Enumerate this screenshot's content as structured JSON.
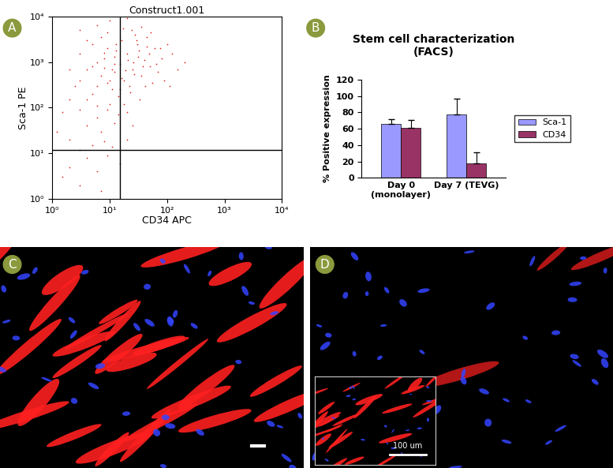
{
  "chart_data": [
    {
      "panel": "A",
      "type": "scatter",
      "title": "Construct1.001",
      "x_label": "CD34 APC",
      "y_label": "Sca-1 PE",
      "log": true,
      "color": "#e02020",
      "marker": "point",
      "xlim": [
        1,
        10000
      ],
      "ylim": [
        1,
        10000
      ],
      "xticks": [
        {
          "value": 1,
          "label": "10⁰"
        },
        {
          "value": 10,
          "label": "10¹"
        },
        {
          "value": 100,
          "label": "10²"
        },
        {
          "value": 1000,
          "label": "10³"
        },
        {
          "value": 10000,
          "label": "10⁴"
        }
      ],
      "yticks": [
        {
          "value": 1,
          "label": "10⁰"
        },
        {
          "value": 10,
          "label": "10¹"
        },
        {
          "value": 100,
          "label": "10²"
        },
        {
          "value": 1000,
          "label": "10³"
        },
        {
          "value": 10000,
          "label": "10⁴"
        }
      ],
      "gates": {
        "x": 15,
        "y": 12
      },
      "x": [
        5,
        8,
        12,
        6,
        9,
        15,
        20,
        25,
        4,
        7,
        11,
        18,
        30,
        40,
        3,
        6,
        10,
        14,
        22,
        35,
        50,
        60,
        45,
        28,
        16,
        9,
        5,
        3,
        2,
        2.5,
        4,
        7,
        12,
        20,
        33,
        70,
        80,
        100,
        55,
        13,
        17,
        24,
        6,
        8,
        10,
        12,
        19,
        26,
        32,
        38,
        42,
        48,
        65,
        90,
        5,
        3,
        2,
        1.5,
        1.2,
        2,
        3,
        5,
        8,
        11,
        4,
        2,
        6,
        9,
        1.5,
        3,
        15,
        7,
        20,
        25,
        18,
        14,
        9,
        6,
        11,
        13,
        7,
        4,
        23,
        29,
        36,
        52,
        75,
        120,
        150,
        110,
        200,
        16,
        21,
        27,
        31,
        44,
        10,
        20,
        6,
        3,
        15,
        12,
        8,
        9,
        4
      ],
      "values": [
        800,
        1200,
        600,
        300,
        2000,
        900,
        1500,
        700,
        150,
        500,
        250,
        400,
        2500,
        1100,
        90,
        60,
        120,
        180,
        300,
        500,
        800,
        2000,
        3500,
        4000,
        3000,
        4500,
        2500,
        1500,
        700,
        300,
        40,
        30,
        45,
        80,
        150,
        600,
        1200,
        2500,
        350,
        1800,
        5500,
        5000,
        1000,
        750,
        400,
        1300,
        650,
        1000,
        1800,
        800,
        300,
        1500,
        900,
        400,
        200,
        400,
        150,
        80,
        30,
        20,
        12,
        15,
        18,
        14,
        8,
        5,
        4,
        9,
        3,
        2,
        6,
        1.5,
        20,
        40,
        120,
        70,
        90,
        110,
        700,
        2500,
        3500,
        3000,
        220,
        3000,
        6000,
        4500,
        2000,
        1500,
        700,
        300,
        1000,
        450,
        1100,
        550,
        1300,
        2200,
        8000,
        9000,
        6500,
        5000,
        250,
        900,
        1600,
        350,
        700
      ]
    },
    {
      "panel": "B",
      "type": "bar",
      "title": "Stem cell characterization\n(FACS)",
      "y_label": "% Positive expression",
      "categories": [
        "Day 0\n(monolayer)",
        "Day 7 (TEVG)"
      ],
      "series": [
        {
          "name": "Sca-1",
          "color": "#9999ff",
          "values": [
            66,
            77
          ],
          "errors": [
            6,
            20
          ]
        },
        {
          "name": "CD34",
          "color": "#993366",
          "values": [
            61,
            18
          ],
          "errors": [
            10,
            13
          ]
        }
      ],
      "ylim": [
        0,
        120
      ],
      "yticks": [
        0,
        20,
        40,
        60,
        80,
        100,
        120
      ],
      "legend": "right"
    }
  ],
  "images": [
    {
      "panel": "C"
    },
    {
      "panel": "D",
      "inset": {
        "scale_bar": "100 um"
      }
    }
  ]
}
